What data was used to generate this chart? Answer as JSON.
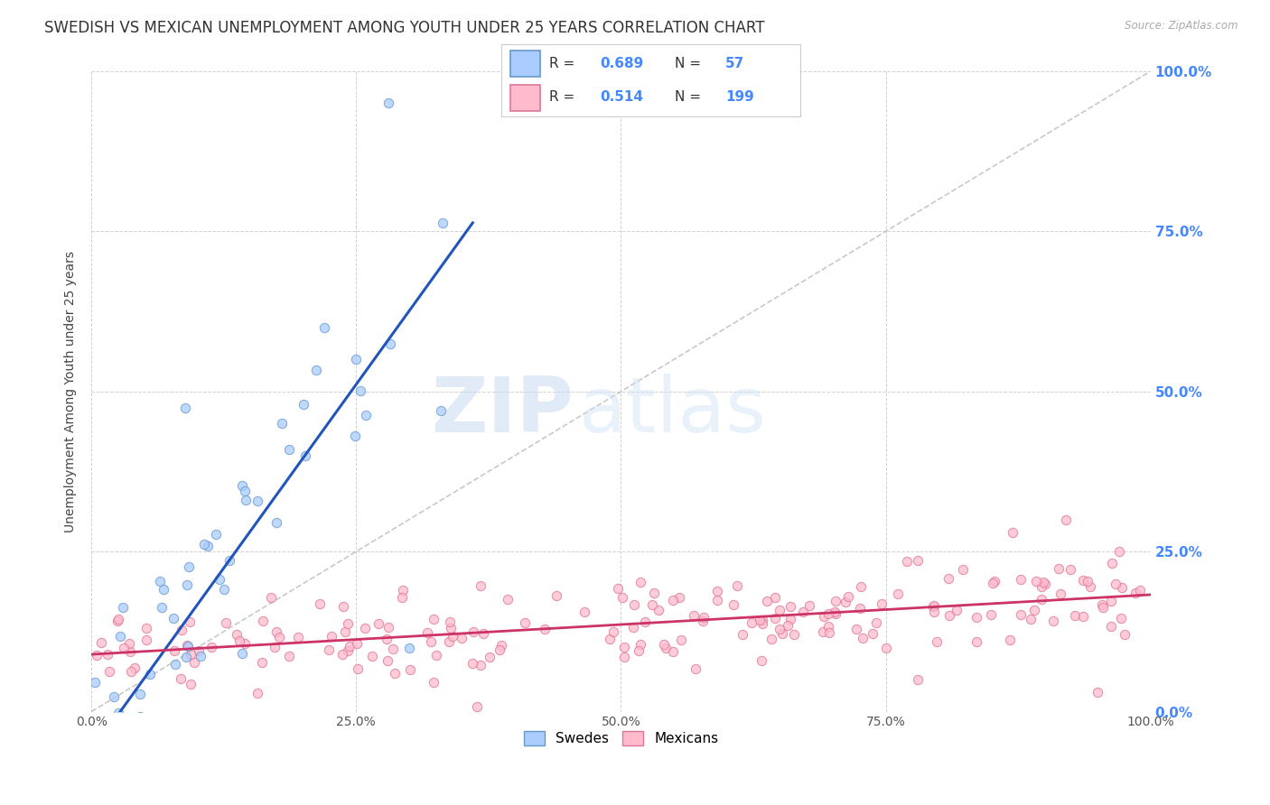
{
  "title": "SWEDISH VS MEXICAN UNEMPLOYMENT AMONG YOUTH UNDER 25 YEARS CORRELATION CHART",
  "source": "Source: ZipAtlas.com",
  "ylabel": "Unemployment Among Youth under 25 years",
  "legend_swedes": "Swedes",
  "legend_mexicans": "Mexicans",
  "swedes_R": 0.689,
  "swedes_N": 57,
  "mexicans_R": 0.514,
  "mexicans_N": 199,
  "color_swedes_fill": "#aaccff",
  "color_mexicans_fill": "#ffbbcc",
  "color_swedes_edge": "#6699cc",
  "color_mexicans_edge": "#dd7799",
  "color_swedes_line": "#2255bb",
  "color_mexicans_line": "#cc3366",
  "color_diagonal": "#bbbbbb",
  "right_axis_labels": [
    "0.0%",
    "25.0%",
    "50.0%",
    "75.0%",
    "100.0%"
  ],
  "right_axis_label_color": "#4488ff",
  "background_color": "#ffffff",
  "title_fontsize": 12,
  "axis_label_fontsize": 10,
  "tick_fontsize": 10,
  "watermark_zip": "ZIP",
  "watermark_atlas": "atlas",
  "watermark_color": "#c8dff5",
  "x_ticks": [
    0.0,
    0.25,
    0.5,
    0.75,
    1.0
  ],
  "x_tick_labels": [
    "0.0%",
    "25.0%",
    "50.0%",
    "75.0%",
    "100.0%"
  ],
  "y_ticks": [
    0.0,
    0.25,
    0.5,
    0.75,
    1.0
  ],
  "seed": 42
}
